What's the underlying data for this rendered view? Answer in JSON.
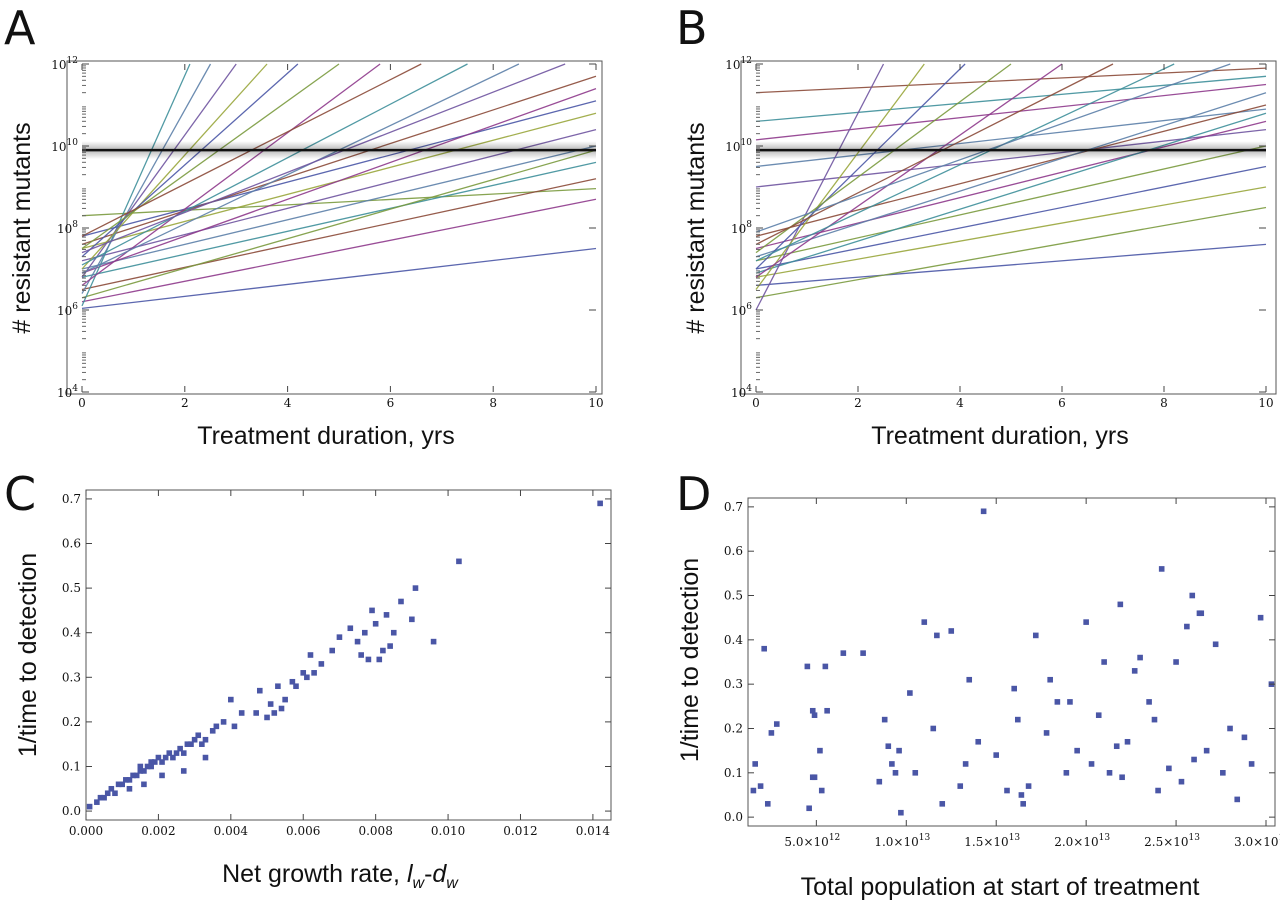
{
  "figure": {
    "colors": {
      "threshold": "#111111",
      "points": "#4a56a6",
      "series_palette": [
        "#4a56a6",
        "#7a9a3e",
        "#8e3a8c",
        "#8b4a38",
        "#3e8f9a",
        "#5c7fa8",
        "#6f54a0",
        "#99a63c"
      ]
    }
  },
  "chart_data": [
    {
      "panel": "A",
      "type": "line",
      "title": "",
      "xlabel": "Treatment duration, yrs",
      "ylabel": "# resistant mutants",
      "y_scale": "log10",
      "xlim": [
        0,
        10
      ],
      "ylim_exp": [
        4,
        12
      ],
      "x_ticks": [
        "0",
        "2",
        "4",
        "6",
        "8",
        "10"
      ],
      "y_tick_exps": [
        "4",
        "6",
        "8",
        "10",
        "12"
      ],
      "threshold_exp": 9.9,
      "series_log10_endpoints": [
        {
          "y0": 6.04,
          "y10": 7.5
        },
        {
          "y0": 8.3,
          "y10": 8.96
        },
        {
          "y0": 6.2,
          "y10": 8.7
        },
        {
          "y0": 6.5,
          "y10": 9.2
        },
        {
          "y0": 6.8,
          "y10": 9.6
        },
        {
          "y0": 7.0,
          "y10": 10.0
        },
        {
          "y0": 7.2,
          "y10": 10.4
        },
        {
          "y0": 7.5,
          "y10": 10.8
        },
        {
          "y0": 7.8,
          "y10": 11.1
        },
        {
          "y0": 6.3,
          "y10": 9.9
        },
        {
          "y0": 6.9,
          "y10": 11.4
        },
        {
          "y0": 7.6,
          "y10": 11.7
        }
      ],
      "series_to_top": [
        {
          "y0": 6.1,
          "x_at_12": 2.1
        },
        {
          "y0": 6.4,
          "x_at_12": 2.5
        },
        {
          "y0": 6.8,
          "x_at_12": 3.0
        },
        {
          "y0": 7.0,
          "x_at_12": 3.6
        },
        {
          "y0": 7.3,
          "x_at_12": 4.2
        },
        {
          "y0": 7.5,
          "x_at_12": 5.0
        },
        {
          "y0": 6.6,
          "x_at_12": 5.8
        },
        {
          "y0": 7.8,
          "x_at_12": 6.6
        },
        {
          "y0": 7.1,
          "x_at_12": 7.5
        },
        {
          "y0": 6.9,
          "x_at_12": 8.5
        },
        {
          "y0": 7.4,
          "x_at_12": 9.4
        }
      ]
    },
    {
      "panel": "B",
      "type": "line",
      "title": "",
      "xlabel": "Treatment duration, yrs",
      "ylabel": "# resistant mutants",
      "y_scale": "log10",
      "xlim": [
        0,
        10
      ],
      "ylim_exp": [
        4,
        12
      ],
      "x_ticks": [
        "0",
        "2",
        "4",
        "6",
        "8",
        "10"
      ],
      "y_tick_exps": [
        "4",
        "6",
        "8",
        "10",
        "12"
      ],
      "threshold_exp": 9.9,
      "series_log10_endpoints": [
        {
          "y0": 6.6,
          "y10": 7.6
        },
        {
          "y0": 6.3,
          "y10": 8.5
        },
        {
          "y0": 10.15,
          "y10": 11.5
        },
        {
          "y0": 11.3,
          "y10": 11.9
        },
        {
          "y0": 10.6,
          "y10": 11.7
        },
        {
          "y0": 9.5,
          "y10": 10.9
        },
        {
          "y0": 9.0,
          "y10": 10.4
        },
        {
          "y0": 6.8,
          "y10": 9.0
        },
        {
          "y0": 7.0,
          "y10": 9.5
        },
        {
          "y0": 7.2,
          "y10": 10.0
        },
        {
          "y0": 7.5,
          "y10": 10.6
        },
        {
          "y0": 7.8,
          "y10": 11.0
        },
        {
          "y0": 6.9,
          "y10": 10.8
        },
        {
          "y0": 7.3,
          "y10": 11.3
        }
      ],
      "series_to_top": [
        {
          "y0": 6.0,
          "x_at_12": 2.5
        },
        {
          "y0": 6.5,
          "x_at_12": 3.3
        },
        {
          "y0": 7.0,
          "x_at_12": 4.1
        },
        {
          "y0": 7.4,
          "x_at_12": 5.0
        },
        {
          "y0": 6.8,
          "x_at_12": 6.0
        },
        {
          "y0": 7.6,
          "x_at_12": 7.0
        },
        {
          "y0": 7.2,
          "x_at_12": 8.2
        },
        {
          "y0": 7.9,
          "x_at_12": 9.3
        }
      ]
    },
    {
      "panel": "C",
      "type": "scatter",
      "title": "",
      "xlabel_main": "Net growth rate, ",
      "xlabel_l": "l",
      "xlabel_ls": "w",
      "xlabel_dash": "-",
      "xlabel_d": "d",
      "xlabel_ds": "w",
      "ylabel": "1/time to detection",
      "xlim": [
        0,
        0.0145
      ],
      "ylim": [
        -0.02,
        0.72
      ],
      "x_ticks": [
        "0.000",
        "0.002",
        "0.004",
        "0.006",
        "0.008",
        "0.010",
        "0.012",
        "0.014"
      ],
      "y_ticks": [
        "0.0",
        "0.1",
        "0.2",
        "0.3",
        "0.4",
        "0.5",
        "0.6",
        "0.7"
      ],
      "x": [
        0.0001,
        0.0003,
        0.0004,
        0.0005,
        0.0006,
        0.0007,
        0.0008,
        0.0009,
        0.001,
        0.0011,
        0.0012,
        0.0013,
        0.0014,
        0.0015,
        0.0015,
        0.0016,
        0.0017,
        0.0018,
        0.0018,
        0.0019,
        0.002,
        0.0021,
        0.0022,
        0.0023,
        0.0024,
        0.0025,
        0.0026,
        0.0027,
        0.0028,
        0.0029,
        0.003,
        0.0031,
        0.0032,
        0.0033,
        0.0035,
        0.0036,
        0.0038,
        0.004,
        0.0041,
        0.0043,
        0.0048,
        0.005,
        0.0051,
        0.0052,
        0.0053,
        0.0054,
        0.0055,
        0.0057,
        0.0058,
        0.006,
        0.0061,
        0.0062,
        0.0065,
        0.0068,
        0.007,
        0.0073,
        0.0075,
        0.0077,
        0.0078,
        0.0079,
        0.008,
        0.0081,
        0.0082,
        0.0083,
        0.0085,
        0.0087,
        0.009,
        0.0091,
        0.0096,
        0.0103,
        0.0142,
        0.0012,
        0.0016,
        0.0021,
        0.0027,
        0.0033,
        0.0047,
        0.0063,
        0.0076,
        0.0084
      ],
      "y": [
        0.01,
        0.02,
        0.03,
        0.03,
        0.04,
        0.05,
        0.04,
        0.06,
        0.06,
        0.07,
        0.07,
        0.08,
        0.08,
        0.09,
        0.1,
        0.09,
        0.1,
        0.1,
        0.11,
        0.11,
        0.12,
        0.11,
        0.12,
        0.13,
        0.12,
        0.13,
        0.14,
        0.13,
        0.15,
        0.15,
        0.16,
        0.17,
        0.15,
        0.16,
        0.18,
        0.19,
        0.2,
        0.25,
        0.19,
        0.22,
        0.27,
        0.21,
        0.24,
        0.22,
        0.28,
        0.23,
        0.25,
        0.29,
        0.28,
        0.31,
        0.3,
        0.35,
        0.33,
        0.36,
        0.39,
        0.41,
        0.38,
        0.4,
        0.34,
        0.45,
        0.42,
        0.34,
        0.36,
        0.44,
        0.4,
        0.47,
        0.43,
        0.5,
        0.38,
        0.56,
        0.69,
        0.05,
        0.06,
        0.08,
        0.09,
        0.12,
        0.22,
        0.31,
        0.35,
        0.37
      ]
    },
    {
      "panel": "D",
      "type": "scatter",
      "title": "",
      "xlabel": "Total population at start of treatment",
      "ylabel": "1/time to detection",
      "xlim_e12": [
        1.2,
        30.5
      ],
      "ylim": [
        -0.02,
        0.72
      ],
      "x_tick_mantissas": [
        "5.0",
        "1.0",
        "1.5",
        "2.0",
        "2.5",
        "3.0"
      ],
      "x_tick_times": "×10",
      "x_tick_exps": [
        "12",
        "13",
        "13",
        "13",
        "13",
        "13"
      ],
      "y_ticks": [
        "0.0",
        "0.1",
        "0.2",
        "0.3",
        "0.4",
        "0.5",
        "0.6",
        "0.7"
      ],
      "x_e12": [
        1.6,
        1.9,
        2.1,
        2.3,
        2.5,
        2.8,
        4.5,
        4.8,
        4.9,
        5.2,
        5.6,
        6.5,
        7.6,
        1.5,
        5.5,
        4.9,
        4.6,
        4.8,
        5.3,
        8.5,
        8.8,
        9.0,
        9.2,
        9.4,
        9.7,
        10.2,
        11.0,
        11.5,
        11.7,
        12.0,
        12.5,
        13.0,
        13.5,
        14.0,
        14.3,
        15.0,
        15.6,
        16.0,
        16.2,
        16.5,
        16.8,
        17.2,
        17.8,
        18.0,
        18.4,
        18.9,
        19.5,
        20.0,
        20.3,
        20.7,
        21.0,
        21.3,
        21.7,
        22.0,
        22.3,
        22.7,
        23.0,
        23.5,
        24.0,
        24.2,
        24.6,
        25.0,
        25.3,
        25.6,
        26.0,
        26.3,
        26.7,
        27.2,
        27.6,
        28.0,
        28.4,
        28.8,
        29.2,
        29.7,
        30.3,
        16.4,
        19.1,
        21.9,
        23.8,
        25.9,
        10.5,
        13.3,
        26.4,
        9.6
      ],
      "y": [
        0.12,
        0.07,
        0.38,
        0.03,
        0.19,
        0.21,
        0.34,
        0.24,
        0.09,
        0.15,
        0.24,
        0.37,
        0.37,
        0.06,
        0.34,
        0.23,
        0.02,
        0.09,
        0.06,
        0.08,
        0.22,
        0.16,
        0.12,
        0.1,
        0.01,
        0.28,
        0.44,
        0.2,
        0.41,
        0.03,
        0.42,
        0.07,
        0.31,
        0.17,
        0.69,
        0.14,
        0.06,
        0.29,
        0.22,
        0.03,
        0.07,
        0.41,
        0.19,
        0.31,
        0.26,
        0.1,
        0.15,
        0.44,
        0.12,
        0.23,
        0.35,
        0.1,
        0.16,
        0.09,
        0.17,
        0.33,
        0.36,
        0.26,
        0.06,
        0.56,
        0.11,
        0.35,
        0.08,
        0.43,
        0.13,
        0.46,
        0.15,
        0.39,
        0.1,
        0.2,
        0.04,
        0.18,
        0.12,
        0.45,
        0.3,
        0.05,
        0.26,
        0.48,
        0.22,
        0.5,
        0.1,
        0.12,
        0.46,
        0.15
      ],
      "x_title_below": true
    }
  ],
  "panel_labels": [
    "A",
    "B",
    "C",
    "D"
  ]
}
